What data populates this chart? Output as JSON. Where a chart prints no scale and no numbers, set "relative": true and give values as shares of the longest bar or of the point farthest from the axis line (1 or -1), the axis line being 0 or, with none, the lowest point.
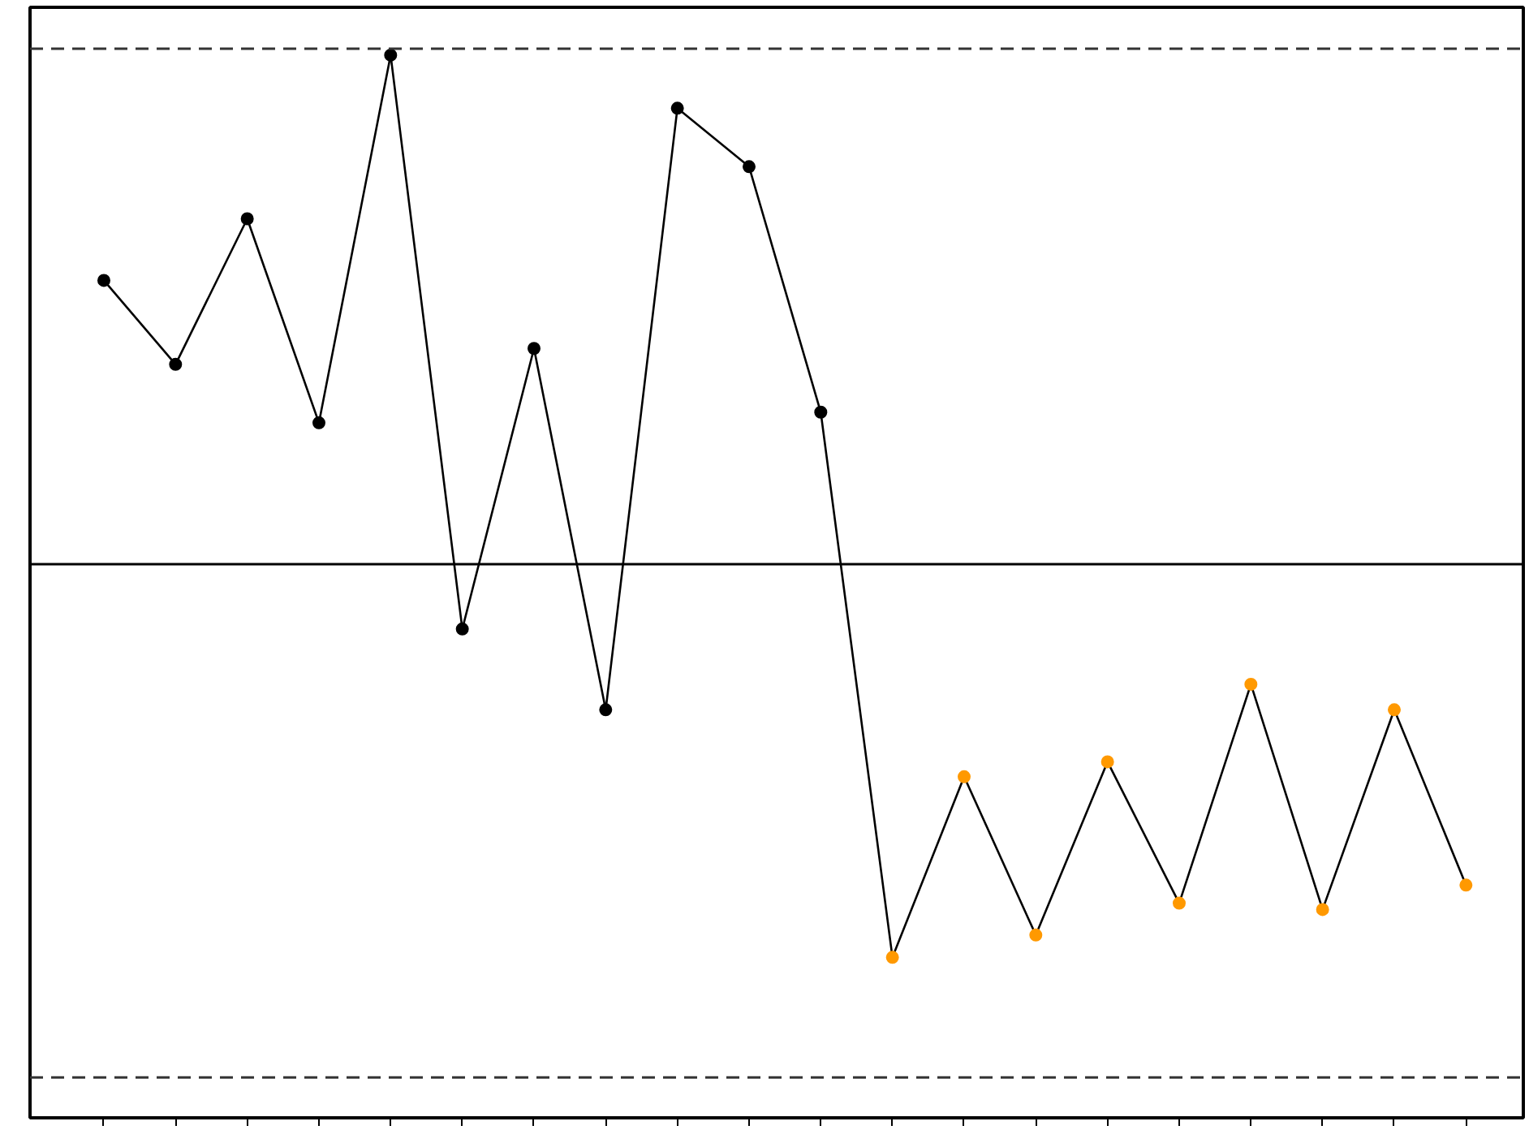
{
  "chart_data": {
    "type": "line",
    "relative": true,
    "grid": false,
    "marker": "circle",
    "line_style": "solid",
    "categories": [
      null,
      null,
      null,
      null,
      null,
      null,
      null,
      null,
      null,
      null,
      null,
      null,
      null,
      null,
      null,
      null,
      null,
      null,
      null,
      null
    ],
    "series": [
      {
        "color": "#000000",
        "colors": [
          "#000000",
          "#000000",
          "#000000",
          "#000000",
          "#000000",
          "#000000",
          "#000000",
          "#000000",
          "#000000",
          "#000000",
          "#000000",
          "#ff9900",
          "#ff9900",
          "#ff9900",
          "#ff9900",
          "#ff9900",
          "#ff9900",
          "#ff9900",
          "#ff9900",
          "#ff9900"
        ],
        "values": [
          0.788,
          0.709,
          0.846,
          0.654,
          1.0,
          0.46,
          0.724,
          0.384,
          0.95,
          0.895,
          0.664,
          0.151,
          0.321,
          0.172,
          0.335,
          0.202,
          0.408,
          0.196,
          0.384,
          0.219
        ]
      }
    ],
    "ref_lines": [
      {
        "axis": "y",
        "value": 1.006,
        "label": null,
        "color": "#333333",
        "line_style": "dashed"
      },
      {
        "axis": "y",
        "value": 0.521,
        "label": null,
        "color": "#000000",
        "line_style": "solid"
      },
      {
        "axis": "y",
        "value": 0.038,
        "label": null,
        "color": "#333333",
        "line_style": "dashed"
      }
    ]
  }
}
